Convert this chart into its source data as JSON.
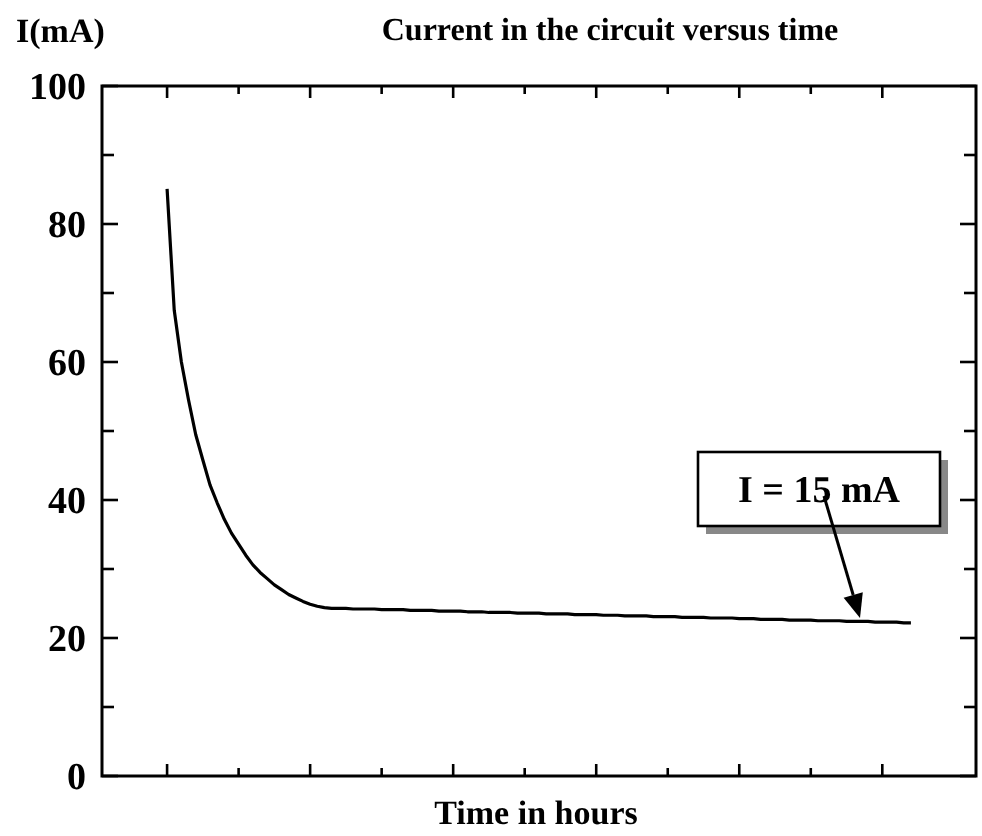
{
  "chart_data": {
    "type": "line",
    "title": "Current in the circuit versus time",
    "xlabel": "Time in hours",
    "ylabel": "I(mA)",
    "categories": [
      null,
      null,
      null,
      null,
      null,
      null,
      null,
      null,
      null,
      null,
      null,
      null,
      null,
      null,
      null,
      null,
      null,
      null,
      null,
      null,
      null,
      null,
      null,
      null,
      null,
      null,
      null,
      null,
      null,
      null,
      null,
      null,
      null,
      null,
      null,
      null,
      null,
      null,
      null,
      null,
      null,
      null,
      null,
      null,
      null,
      null,
      null,
      null,
      null,
      null,
      null,
      null,
      null,
      null,
      null,
      null,
      null,
      null,
      null,
      null,
      null,
      null,
      null,
      null,
      null,
      null,
      null,
      null,
      null,
      null,
      null,
      null,
      null,
      null,
      null,
      null,
      null,
      null,
      null,
      null,
      null,
      null,
      null,
      null,
      null,
      null,
      null,
      null,
      null,
      null,
      null,
      null,
      null,
      null,
      null,
      null,
      null,
      null,
      null,
      null,
      null,
      null,
      null,
      null,
      null
    ],
    "values": [
      85.1,
      67.5,
      60,
      54.5,
      49.5,
      45.8,
      42.2,
      39.6,
      37.2,
      35.2,
      33.6,
      32,
      30.6,
      29.5,
      28.6,
      27.7,
      27,
      26.3,
      25.8,
      25.3,
      24.9,
      24.6,
      24.4,
      24.3,
      24.3,
      24.3,
      24.2,
      24.2,
      24.2,
      24.2,
      24.1,
      24.1,
      24.1,
      24.1,
      24.0,
      24.0,
      24.0,
      24.0,
      23.9,
      23.9,
      23.9,
      23.9,
      23.8,
      23.8,
      23.8,
      23.7,
      23.7,
      23.7,
      23.7,
      23.6,
      23.6,
      23.6,
      23.6,
      23.5,
      23.5,
      23.5,
      23.5,
      23.4,
      23.4,
      23.4,
      23.4,
      23.3,
      23.3,
      23.3,
      23.2,
      23.2,
      23.2,
      23.2,
      23.1,
      23.1,
      23.1,
      23.1,
      23.0,
      23.0,
      23.0,
      23.0,
      22.9,
      22.9,
      22.9,
      22.9,
      22.8,
      22.8,
      22.8,
      22.7,
      22.7,
      22.7,
      22.7,
      22.6,
      22.6,
      22.6,
      22.6,
      22.5,
      22.5,
      22.5,
      22.5,
      22.4,
      22.4,
      22.4,
      22.4,
      22.3,
      22.3,
      22.3,
      22.3,
      22.2,
      22.2
    ],
    "color": "#000000",
    "marker": "none",
    "line_style": "solid",
    "grid": false,
    "ylim": [
      0,
      100
    ],
    "yticks": [
      0,
      20,
      40,
      60,
      80,
      100
    ],
    "annotations": [
      "I = 15 mA"
    ]
  }
}
